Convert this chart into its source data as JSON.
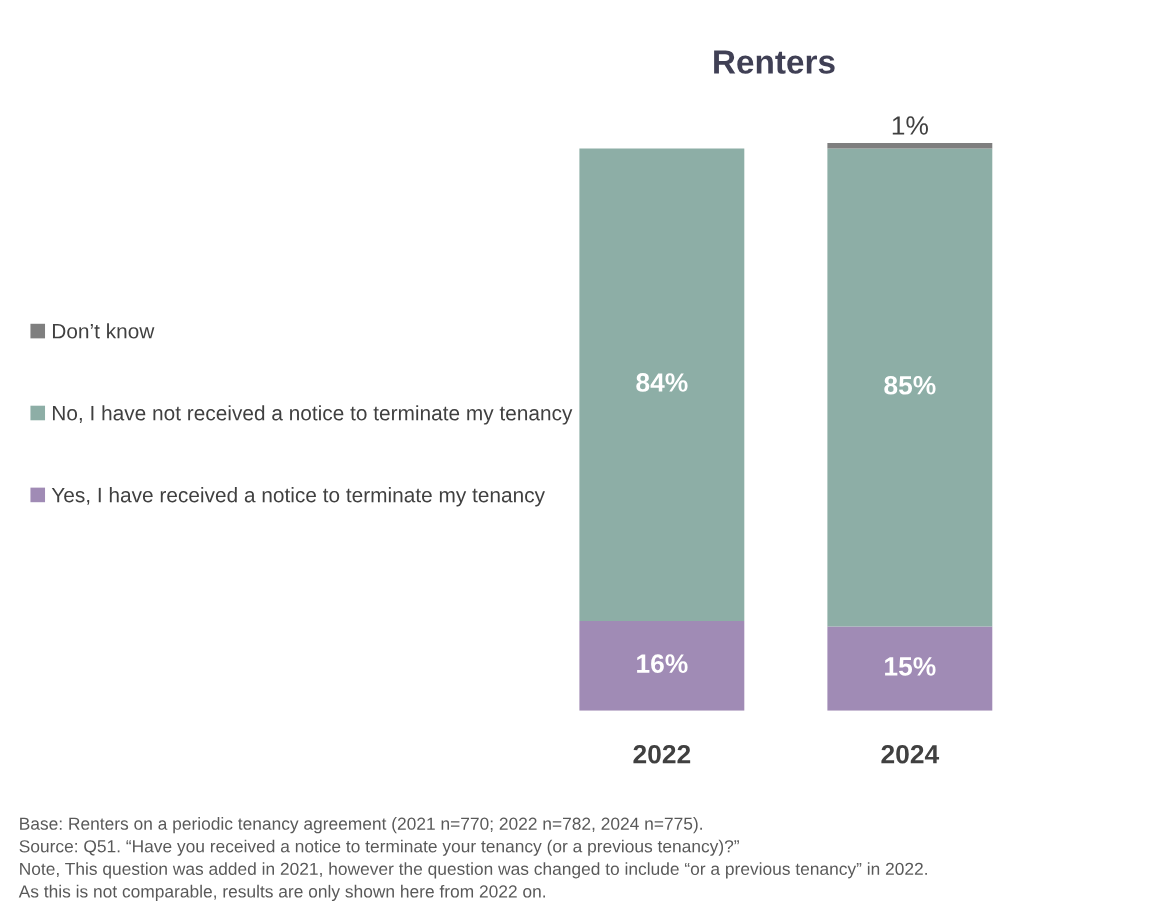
{
  "chart_data": {
    "type": "bar",
    "title": "Renters",
    "stacked": true,
    "categories": [
      "2022",
      "2024"
    ],
    "series": [
      {
        "name": "Yes, I have received a notice to terminate my tenancy",
        "color": "#a08bb5",
        "values": [
          16,
          15
        ],
        "value_labels": [
          "16%",
          "15%"
        ]
      },
      {
        "name": "No, I have not received a notice to terminate my tenancy",
        "color": "#8daea6",
        "values": [
          84,
          85
        ],
        "value_labels": [
          "84%",
          "85%"
        ]
      },
      {
        "name": "Don’t know",
        "color": "#7f7f7f",
        "values": [
          0,
          1
        ],
        "value_labels": [
          null,
          "1%"
        ]
      }
    ],
    "legend": "left",
    "annotations": [
      "Base: Renters on a periodic tenancy agreement (2021 n=770; 2022 n=782, 2024 n=775).",
      "Source: Q51. “Have you received a notice to terminate your tenancy (or a previous tenancy)?”",
      "Note, This question was added in 2021, however the question was changed to include “or a previous tenancy” in 2022.",
      "As this is not comparable, results are only shown here from 2022 on."
    ]
  }
}
